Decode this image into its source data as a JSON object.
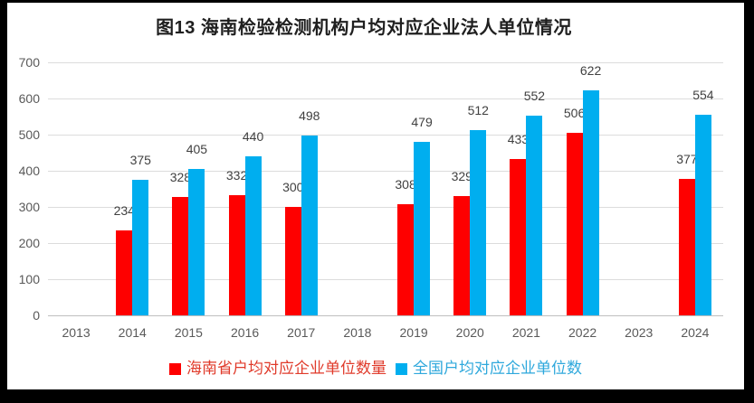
{
  "window": {
    "frame_color": "#000000",
    "canvas_background": "#FFFFFF"
  },
  "chart_data": {
    "type": "bar",
    "title": "图13 海南检验检测机构户均对应企业法人单位情况",
    "categories": [
      "2013",
      "2014",
      "2015",
      "2016",
      "2017",
      "2018",
      "2019",
      "2020",
      "2021",
      "2022",
      "2023",
      "2024"
    ],
    "series": [
      {
        "name": "海南省户均对应企业单位数量",
        "color": "#FE0000",
        "label_color": "#E03A2A",
        "values": [
          null,
          234,
          328,
          332,
          300,
          null,
          308,
          329,
          433,
          506,
          null,
          377
        ]
      },
      {
        "name": "全国户均对应企业单位数",
        "color": "#00AEEF",
        "label_color": "#2EA8DC",
        "values": [
          null,
          375,
          405,
          440,
          498,
          null,
          479,
          512,
          552,
          622,
          null,
          554
        ]
      }
    ],
    "xlabel": "",
    "ylabel": "",
    "ylim": [
      0,
      700
    ],
    "yticks": [
      0,
      100,
      200,
      300,
      400,
      500,
      600,
      700
    ],
    "grid": true,
    "value_labels": "outside-end",
    "legend_position": "bottom",
    "colors": {
      "grid_line": "#DCDCDC",
      "axis_line": "#BFBFBF",
      "tick_label": "#595959",
      "value_label": "#404040",
      "title": "#1F1F1F"
    }
  }
}
